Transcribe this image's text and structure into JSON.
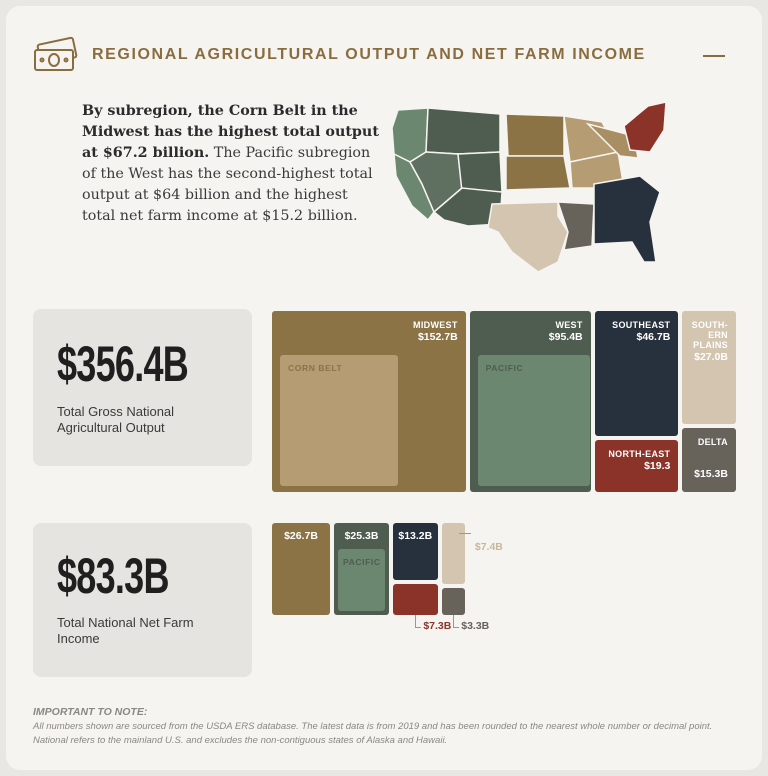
{
  "header": {
    "title": "REGIONAL AGRICULTURAL OUTPUT AND NET FARM INCOME"
  },
  "intro": {
    "bold": "By subregion, the Corn Belt in the Midwest has the highest total output at $67.2 billion.",
    "text": "The Pacific subregion of the West has the second-highest total output at $64 billion and the highest total net farm income at $15.2 billion."
  },
  "output": {
    "total": "$356.4B",
    "caption": "Total Gross National Agricultural Output",
    "regions": [
      {
        "name": "MIDWEST",
        "value": 152.7,
        "value_label": "$152.7B",
        "color": "#8b7346",
        "sub": {
          "name": "CORN BELT",
          "value": 67.2,
          "color": "#b59c72"
        }
      },
      {
        "name": "WEST",
        "value": 95.4,
        "value_label": "$95.4B",
        "color": "#4f5d50",
        "sub": {
          "name": "PACIFIC",
          "value": 64,
          "color": "#6b8770"
        }
      },
      {
        "name": "SOUTHEAST",
        "value": 46.7,
        "value_label": "$46.7B",
        "color": "#27303d"
      },
      {
        "name": "SOUTH-ERN PLAINS",
        "value": 27.0,
        "value_label": "$27.0B",
        "color": "#d4c5b1"
      },
      {
        "name": "NORTH-EAST",
        "value": 19.3,
        "value_label": "$19.3",
        "color": "#8b3329"
      },
      {
        "name": "DELTA",
        "value": 15.3,
        "value_label": "$15.3B",
        "color": "#67625a"
      }
    ]
  },
  "income": {
    "total": "$83.3B",
    "caption": "Total National Net Farm Income",
    "regions": [
      {
        "value": 26.7,
        "value_label": "$26.7B",
        "color": "#8b7346"
      },
      {
        "value": 25.3,
        "value_label": "$25.3B",
        "color": "#4f5d50",
        "sub": {
          "name": "PACIFIC",
          "value": 15.2,
          "color": "#6b8770"
        }
      },
      {
        "value": 13.2,
        "value_label": "$13.2B",
        "color": "#27303d"
      },
      {
        "value": 7.4,
        "value_label": "$7.4B",
        "color": "#d4c5b1"
      },
      {
        "value": 7.3,
        "value_label": "$7.3B",
        "color": "#8b3329"
      },
      {
        "value": 3.3,
        "value_label": "$3.3B",
        "color": "#67625a"
      }
    ]
  },
  "note": {
    "heading": "IMPORTANT TO NOTE:",
    "text": "All numbers shown are sourced from the USDA ERS database. The latest data is from 2019 and has been rounded to the nearest whole number or decimal point. National refers to the mainland U.S. and excludes the non-contiguous states of Alaska and Hawaii."
  }
}
